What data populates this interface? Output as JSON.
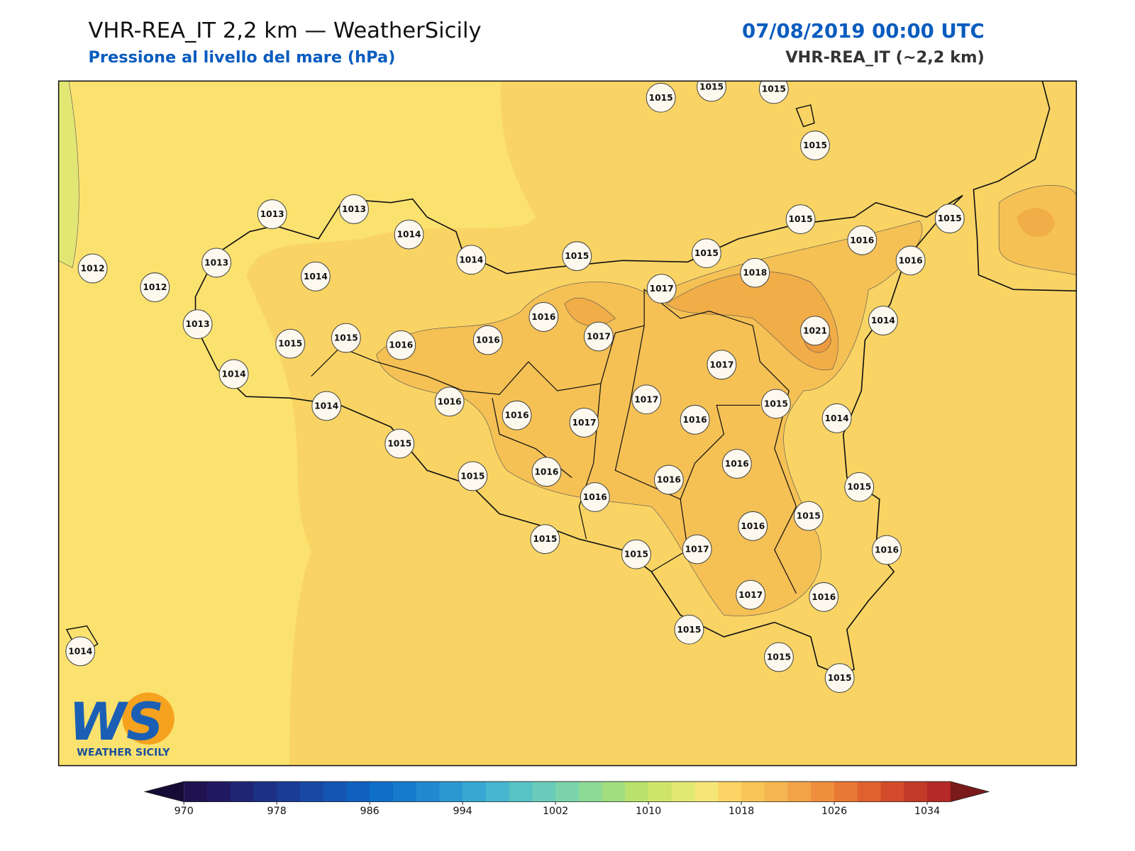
{
  "header": {
    "title": "VHR-REA_IT 2,2 km — WeatherSicily",
    "subtitle": "Pressione al livello del mare (hPa)",
    "date": "07/08/2019 00:00 UTC",
    "model": "VHR-REA_IT (~2,2 km)"
  },
  "map": {
    "stations": [
      1015,
      1015,
      1015,
      1015,
      1013,
      1013,
      1014,
      1014,
      1015,
      1015,
      1015,
      1016,
      1015,
      1016,
      1018,
      1017,
      1012,
      1012,
      1013,
      1014,
      1013,
      1015,
      1015,
      1016,
      1016,
      1016,
      1017,
      1021,
      1014,
      1014,
      1017,
      1017,
      1015,
      1014,
      1014,
      1016,
      1016,
      1017,
      1016,
      1015,
      1016,
      1015,
      1016,
      1016,
      1016,
      1015,
      1016,
      1017,
      1015,
      1016,
      1015,
      1015,
      1017,
      1016,
      1015,
      1015,
      1015,
      1014
    ]
  },
  "colorbar": {
    "range": [
      970,
      1036
    ],
    "ticks": [
      970,
      978,
      986,
      994,
      1002,
      1010,
      1018,
      1026,
      1034
    ],
    "colors": [
      "#201250",
      "#211a62",
      "#1f2573",
      "#1c3084",
      "#1a3c95",
      "#1748a5",
      "#1454b3",
      "#1061bf",
      "#0f6ec7",
      "#167bcc",
      "#2089cf",
      "#2b98d2",
      "#37a8d2",
      "#47b6cf",
      "#58c3c6",
      "#69ccba",
      "#7ad3aa",
      "#8dd996",
      "#a2de80",
      "#b8e26c",
      "#cfe56a",
      "#e2e874",
      "#f6e678",
      "#fcd465",
      "#f9c559",
      "#f5b550",
      "#f3a246",
      "#ef8e3d",
      "#e97735",
      "#e0602e",
      "#d34b2a",
      "#c43a28",
      "#b52a26"
    ],
    "under": "#160b35",
    "over": "#7a1a1a"
  },
  "logo": {
    "mark": "WS",
    "text": "WEATHER SICILY"
  }
}
